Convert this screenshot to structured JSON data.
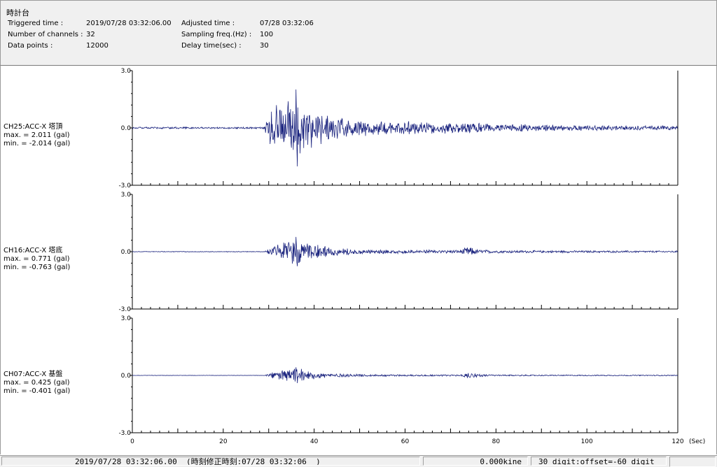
{
  "window": {
    "title": "時計台"
  },
  "info": {
    "triggered_label": "Triggered time :",
    "triggered_value": "2019/07/28 03:32:06.00",
    "channels_label": "Number of channels :",
    "channels_value": "32",
    "datapoints_label": "Data points :",
    "datapoints_value": "12000",
    "adjusted_label": "Adjusted time :",
    "adjusted_value": "07/28 03:32:06",
    "sampling_label": "Sampling freq.(Hz) :",
    "sampling_value": "100",
    "delay_label": "Delay time(sec) :",
    "delay_value": "30"
  },
  "chart_data": {
    "type": "line",
    "x_unit": "(Sec)",
    "xlim": [
      0,
      120
    ],
    "x_ticks": [
      "0",
      "20",
      "40",
      "60",
      "80",
      "100",
      "120"
    ],
    "y_tick_labels": [
      "3.0",
      "0.0",
      "-3.0"
    ],
    "ylim": [
      -3.0,
      3.0
    ],
    "grid": false,
    "line_color": "#1a237e",
    "channels": [
      {
        "name": "CH25:ACC-X 塔頂",
        "max_text": "max. = 2.011 (gal)",
        "min_text": "min. = -2.014 (gal)",
        "max": 2.011,
        "min": -2.014,
        "event_start": 29,
        "peak_time": 36,
        "envelope": [
          [
            0,
            0.05
          ],
          [
            29,
            0.05
          ],
          [
            30,
            0.9
          ],
          [
            32,
            1.4
          ],
          [
            34,
            1.9
          ],
          [
            36,
            2.0
          ],
          [
            38,
            1.5
          ],
          [
            40,
            1.0
          ],
          [
            45,
            0.6
          ],
          [
            50,
            0.45
          ],
          [
            60,
            0.38
          ],
          [
            70,
            0.3
          ],
          [
            75,
            0.3
          ],
          [
            80,
            0.22
          ],
          [
            90,
            0.18
          ],
          [
            100,
            0.15
          ],
          [
            110,
            0.12
          ],
          [
            120,
            0.12
          ]
        ]
      },
      {
        "name": "CH16:ACC-X 塔底",
        "max_text": "max. = 0.771 (gal)",
        "min_text": "min. = -0.763 (gal)",
        "max": 0.771,
        "min": -0.763,
        "event_start": 29,
        "peak_time": 36,
        "envelope": [
          [
            0,
            0.02
          ],
          [
            29,
            0.02
          ],
          [
            31,
            0.35
          ],
          [
            34,
            0.6
          ],
          [
            36,
            0.77
          ],
          [
            38,
            0.5
          ],
          [
            42,
            0.3
          ],
          [
            50,
            0.15
          ],
          [
            60,
            0.1
          ],
          [
            72,
            0.1
          ],
          [
            74,
            0.3
          ],
          [
            76,
            0.12
          ],
          [
            80,
            0.08
          ],
          [
            100,
            0.06
          ],
          [
            120,
            0.05
          ]
        ]
      },
      {
        "name": "CH07:ACC-X 基盤",
        "max_text": "max. = 0.425 (gal)",
        "min_text": "min. = -0.401 (gal)",
        "max": 0.425,
        "min": -0.401,
        "event_start": 29,
        "peak_time": 36,
        "envelope": [
          [
            0,
            0.01
          ],
          [
            29,
            0.01
          ],
          [
            31,
            0.2
          ],
          [
            34,
            0.35
          ],
          [
            36,
            0.42
          ],
          [
            38,
            0.3
          ],
          [
            42,
            0.15
          ],
          [
            50,
            0.07
          ],
          [
            60,
            0.05
          ],
          [
            72,
            0.05
          ],
          [
            74,
            0.2
          ],
          [
            76,
            0.08
          ],
          [
            80,
            0.04
          ],
          [
            100,
            0.03
          ],
          [
            120,
            0.03
          ]
        ]
      }
    ]
  },
  "status_bar": {
    "time_text": "2019/07/28 03:32:06.00  (時刻修正時刻:07/28 03:32:06  )",
    "velocity_text": "0.000kine",
    "offset_text": "30 digit:offset=-60 digit"
  }
}
